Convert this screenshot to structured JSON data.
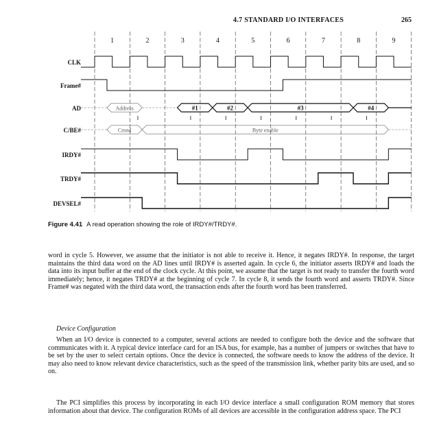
{
  "header": {
    "section": "4.7 STANDARD I/O INTERFACES",
    "page_number": "265"
  },
  "timing_diagram": {
    "cycles": [
      "1",
      "2",
      "3",
      "4",
      "5",
      "6",
      "7",
      "8",
      "9"
    ],
    "signals": [
      "CLK",
      "Frame#",
      "AD",
      "C/BE#",
      "IRDY#",
      "TRDY#",
      "DEVSEL#"
    ],
    "ad_address": "Address",
    "ad_words": [
      "#1",
      "#2",
      "#3",
      "#4"
    ],
    "cbe_command": "Cmnd",
    "cbe_byte_enable": "Byte enable"
  },
  "caption": {
    "label": "Figure 4.41",
    "text": "A read operation showing the role of IRDY#/TRDY#."
  },
  "paragraphs": {
    "p1": "word in cycle 5. However, we assume that the initiator is not able to receive it. Hence, it negates IRDY#. In response, the target maintains the third data word on the AD lines until IRDY# is asserted again. In cycle 6, the initiator asserts IRDY# and loads the data into its input buffer at the end of the clock cycle. At this point, we assume that the target is not ready to transfer the fourth word immediately; hence, it negates TRDY# at the beginning of cycle 7. In cycle 8, it sends the fourth word and asserts TRDY#. Since Frame# was negated with the third data word, the transaction ends after the fourth word has been transferred.",
    "subheading": "Device Configuration",
    "p2": "When an I/O device is connected to a computer, several actions are needed to configure both the device and the software that communicates with it. A typical device interface card for an ISA bus, for example, has a number of jumpers or switches that have to be set by the user to select certain options. Once the device is connected, the software needs to know the address of the device. It may also need to know relevant device characteristics, such as the speed of the transmission link, whether parity bits are used, and so on.",
    "p3": "The PCI simplifies this process by incorporating in each I/O device interface a small configuration ROM memory that stores information about that device. The configuration ROMs of all devices are accessible in the configuration address space. The PCI"
  }
}
